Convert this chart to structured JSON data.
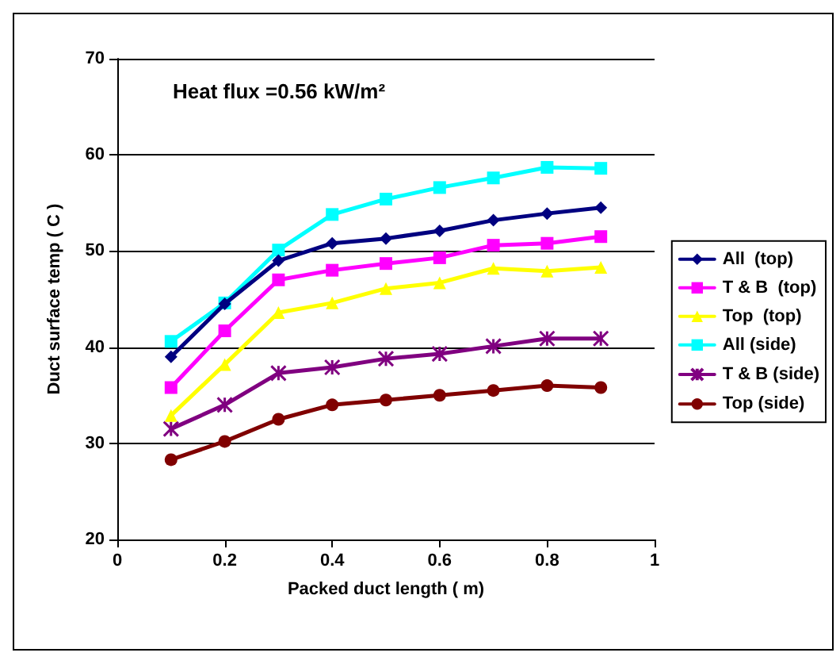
{
  "chart_data": {
    "type": "line",
    "xlabel": "Packed duct length ( m)",
    "ylabel": "Duct surface temp ( C )",
    "annotations": [
      "Heat flux =0.56 kW/m²"
    ],
    "x": [
      0.1,
      0.2,
      0.3,
      0.4,
      0.5,
      0.6,
      0.7,
      0.8,
      0.9
    ],
    "xlim": [
      0,
      1
    ],
    "xticks": [
      0,
      0.2,
      0.4,
      0.6,
      0.8,
      1
    ],
    "ylim": [
      20,
      70
    ],
    "yticks": [
      20,
      30,
      40,
      50,
      60,
      70
    ],
    "grid": "y",
    "legend": "right",
    "series": [
      {
        "name": "All  (top)",
        "color": "#000080",
        "marker": "diamond",
        "values": [
          39,
          44.5,
          49,
          50.8,
          51.3,
          52.1,
          53.2,
          53.9,
          54.5
        ]
      },
      {
        "name": "T & B  (top)",
        "color": "#ff00ff",
        "marker": "square",
        "values": [
          35.8,
          41.7,
          47,
          48,
          48.7,
          49.3,
          50.6,
          50.8,
          51.5
        ]
      },
      {
        "name": "Top  (top)",
        "color": "#ffff00",
        "marker": "triangle",
        "values": [
          32.9,
          38.2,
          43.6,
          44.6,
          46.1,
          46.7,
          48.2,
          47.9,
          48.3
        ]
      },
      {
        "name": "All (side)",
        "color": "#00ffff",
        "marker": "square",
        "values": [
          40.6,
          44.6,
          50.1,
          53.8,
          55.4,
          56.6,
          57.6,
          58.7,
          58.6
        ]
      },
      {
        "name": "T & B (side)",
        "color": "#800080",
        "marker": "cross",
        "values": [
          31.5,
          34,
          37.3,
          37.9,
          38.8,
          39.3,
          40.1,
          40.9,
          40.9
        ]
      },
      {
        "name": "Top (side)",
        "color": "#800000",
        "marker": "circle",
        "values": [
          28.3,
          30.2,
          32.5,
          34,
          34.5,
          35,
          35.5,
          36,
          35.8
        ]
      }
    ]
  }
}
